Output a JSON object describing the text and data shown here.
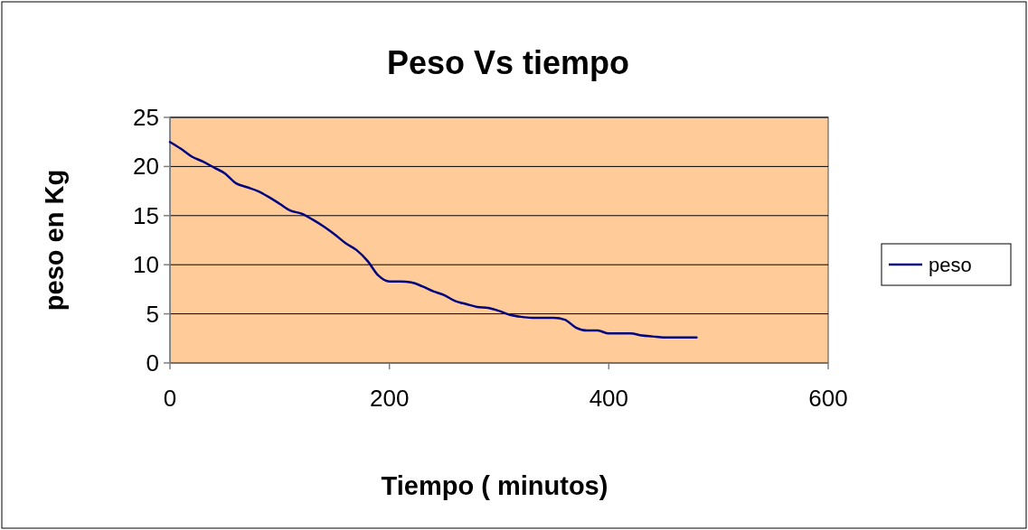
{
  "chart_data": {
    "type": "line",
    "title": "Peso Vs tiempo",
    "xlabel": "Tiempo ( minutos)",
    "ylabel": "peso en Kg",
    "xlim": [
      0,
      600
    ],
    "xticks": [
      0,
      200,
      400,
      600
    ],
    "ylim": [
      0,
      25
    ],
    "yticks": [
      0,
      5,
      10,
      15,
      20,
      25
    ],
    "grid": "y",
    "legend": "right",
    "series": [
      {
        "name": "peso",
        "color": "#000080",
        "x": [
          0,
          10,
          20,
          30,
          40,
          50,
          60,
          70,
          80,
          90,
          100,
          110,
          120,
          130,
          140,
          150,
          160,
          170,
          180,
          190,
          200,
          210,
          220,
          230,
          240,
          250,
          260,
          270,
          280,
          290,
          300,
          310,
          320,
          330,
          340,
          350,
          360,
          370,
          380,
          390,
          400,
          410,
          420,
          430,
          440,
          450,
          460,
          470,
          480
        ],
        "values": [
          22.5,
          21.8,
          21.0,
          20.5,
          19.9,
          19.3,
          18.3,
          17.9,
          17.5,
          16.9,
          16.2,
          15.5,
          15.2,
          14.6,
          13.9,
          13.1,
          12.2,
          11.5,
          10.4,
          8.9,
          8.3,
          8.3,
          8.2,
          7.8,
          7.3,
          6.9,
          6.3,
          6.0,
          5.7,
          5.6,
          5.3,
          4.9,
          4.7,
          4.6,
          4.6,
          4.6,
          4.4,
          3.6,
          3.3,
          3.3,
          3.0,
          3.0,
          3.0,
          2.8,
          2.7,
          2.6,
          2.6,
          2.6,
          2.6
        ]
      }
    ]
  }
}
